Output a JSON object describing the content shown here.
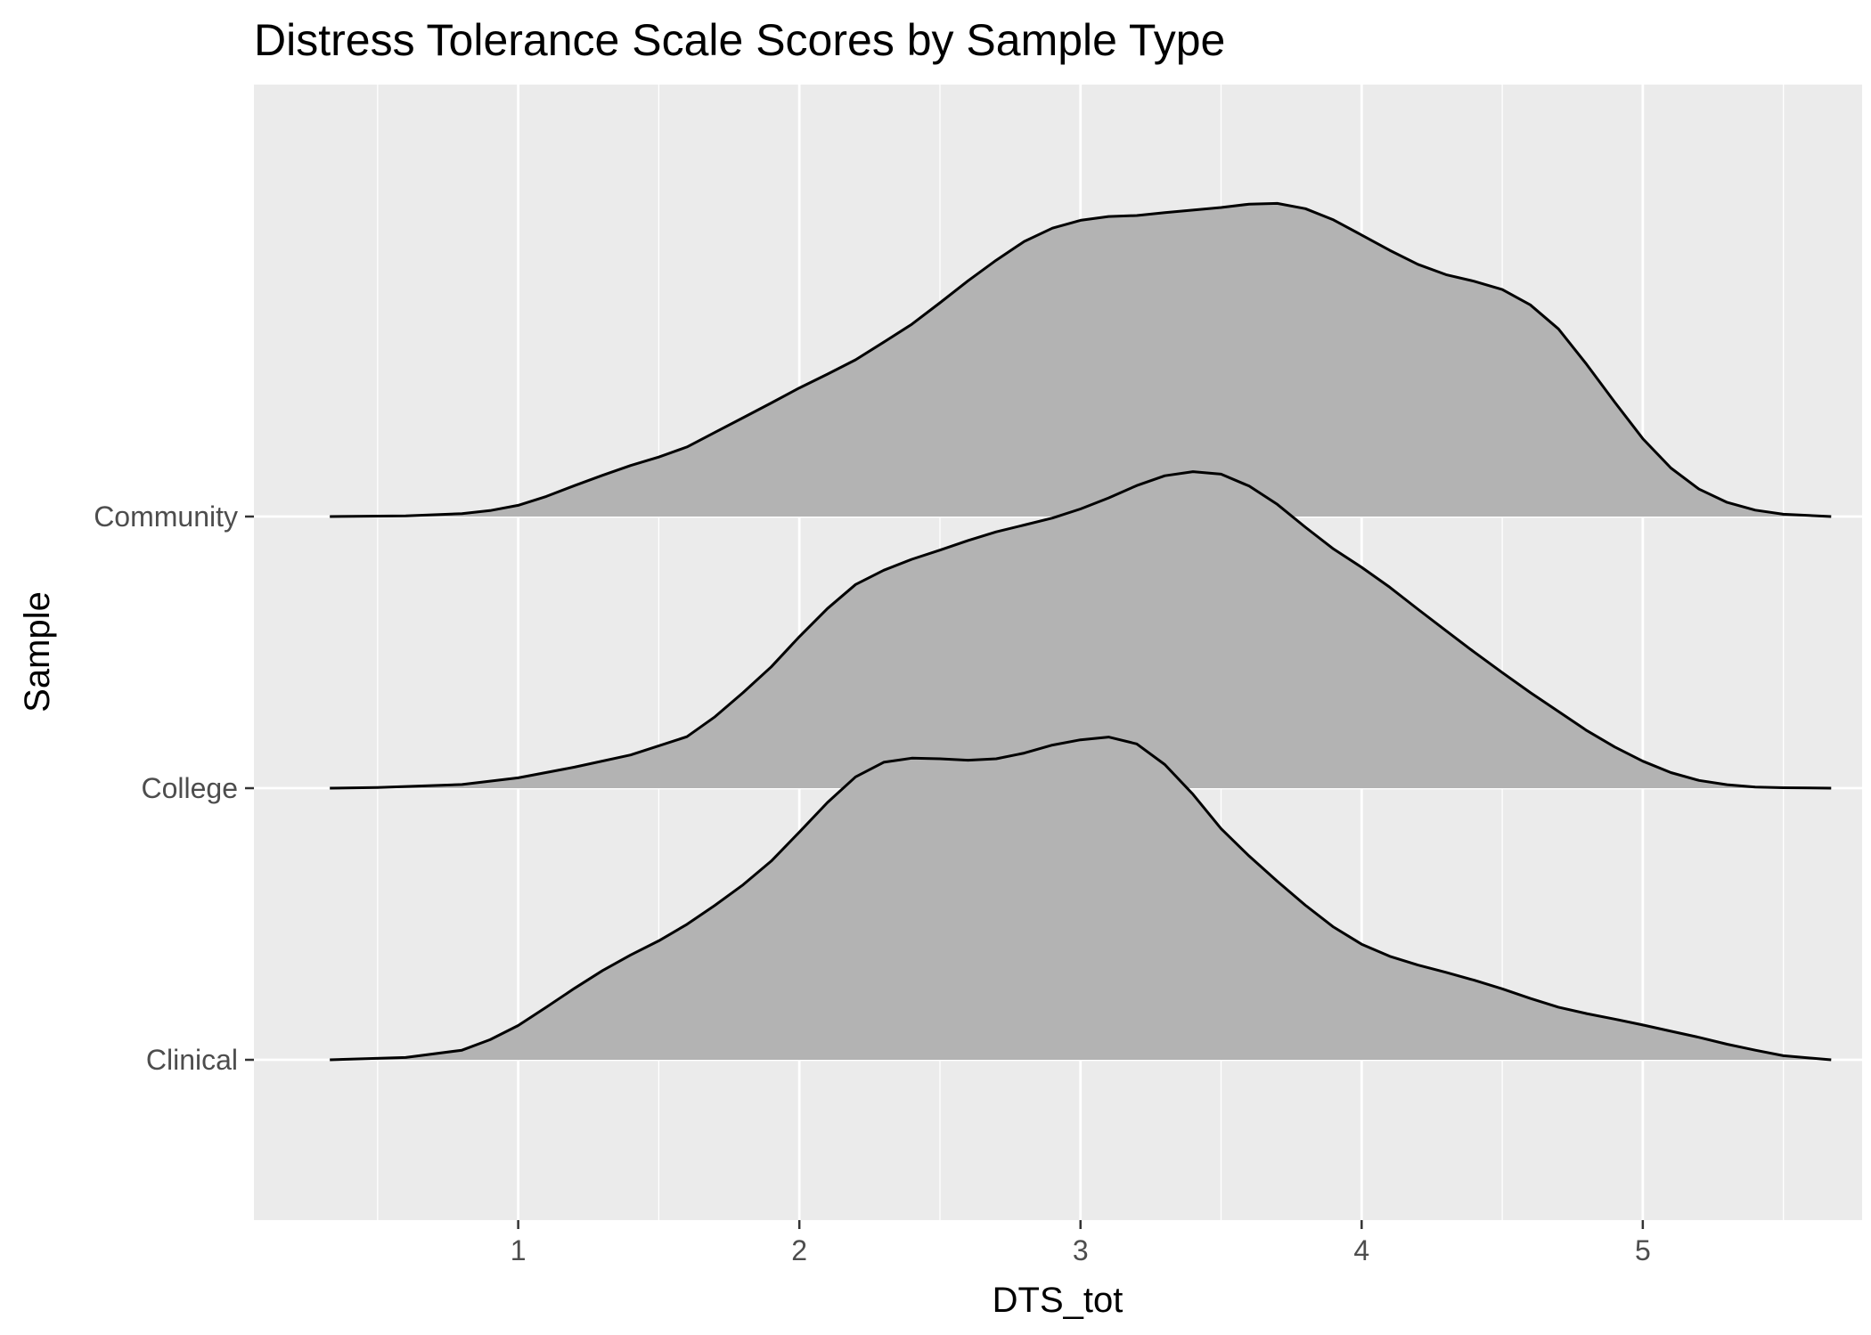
{
  "chart_data": {
    "type": "area",
    "subtype": "ridgeline-density",
    "title": "Distress Tolerance Scale Scores by Sample Type",
    "xlabel": "DTS_tot",
    "ylabel": "Sample",
    "xlim": [
      0.06,
      5.78
    ],
    "x_ticks": [
      1,
      2,
      3,
      4,
      5
    ],
    "x_tick_labels": [
      "1",
      "2",
      "3",
      "4",
      "5"
    ],
    "categories": [
      "Clinical",
      "College",
      "Community"
    ],
    "grid": true,
    "fill_color": "#b3b3b3",
    "outline_color": "#000000",
    "panel_color": "#ebebeb",
    "grid_color": "#ffffff",
    "series": [
      {
        "name": "Community",
        "x": [
          0.33,
          0.6,
          0.8,
          0.9,
          1.0,
          1.1,
          1.2,
          1.3,
          1.4,
          1.5,
          1.6,
          1.7,
          1.8,
          1.9,
          2.0,
          2.1,
          2.2,
          2.3,
          2.4,
          2.5,
          2.6,
          2.7,
          2.8,
          2.9,
          3.0,
          3.1,
          3.2,
          3.3,
          3.4,
          3.5,
          3.6,
          3.7,
          3.8,
          3.9,
          4.0,
          4.1,
          4.2,
          4.3,
          4.4,
          4.5,
          4.6,
          4.7,
          4.8,
          4.9,
          5.0,
          5.1,
          5.2,
          5.3,
          5.4,
          5.5,
          5.67
        ],
        "density": [
          0.0,
          0.003,
          0.013,
          0.026,
          0.049,
          0.088,
          0.135,
          0.18,
          0.223,
          0.26,
          0.304,
          0.368,
          0.432,
          0.496,
          0.562,
          0.622,
          0.685,
          0.762,
          0.84,
          0.934,
          1.03,
          1.12,
          1.202,
          1.26,
          1.294,
          1.311,
          1.315,
          1.328,
          1.339,
          1.35,
          1.365,
          1.368,
          1.345,
          1.296,
          1.23,
          1.163,
          1.102,
          1.057,
          1.028,
          0.992,
          0.925,
          0.82,
          0.665,
          0.5,
          0.34,
          0.212,
          0.12,
          0.062,
          0.028,
          0.01,
          0.0
        ]
      },
      {
        "name": "College",
        "x": [
          0.33,
          0.5,
          0.8,
          1.0,
          1.2,
          1.4,
          1.6,
          1.7,
          1.8,
          1.9,
          2.0,
          2.1,
          2.2,
          2.3,
          2.4,
          2.5,
          2.6,
          2.7,
          2.8,
          2.9,
          3.0,
          3.1,
          3.2,
          3.3,
          3.4,
          3.5,
          3.6,
          3.7,
          3.8,
          3.9,
          4.0,
          4.1,
          4.2,
          4.3,
          4.4,
          4.5,
          4.6,
          4.7,
          4.8,
          4.9,
          5.0,
          5.1,
          5.2,
          5.3,
          5.4,
          5.5,
          5.67
        ],
        "density": [
          0.0,
          0.003,
          0.016,
          0.045,
          0.092,
          0.145,
          0.225,
          0.312,
          0.418,
          0.53,
          0.662,
          0.785,
          0.89,
          0.952,
          1.0,
          1.04,
          1.082,
          1.12,
          1.15,
          1.18,
          1.22,
          1.268,
          1.322,
          1.365,
          1.383,
          1.372,
          1.32,
          1.24,
          1.14,
          1.045,
          0.965,
          0.878,
          0.782,
          0.688,
          0.595,
          0.505,
          0.418,
          0.335,
          0.252,
          0.18,
          0.118,
          0.068,
          0.034,
          0.015,
          0.005,
          0.002,
          0.0
        ]
      },
      {
        "name": "Clinical",
        "x": [
          0.33,
          0.6,
          0.8,
          0.9,
          1.0,
          1.1,
          1.2,
          1.3,
          1.4,
          1.5,
          1.6,
          1.7,
          1.8,
          1.9,
          2.0,
          2.1,
          2.2,
          2.3,
          2.4,
          2.5,
          2.6,
          2.7,
          2.8,
          2.9,
          3.0,
          3.1,
          3.2,
          3.3,
          3.4,
          3.5,
          3.6,
          3.7,
          3.8,
          3.9,
          4.0,
          4.1,
          4.2,
          4.3,
          4.4,
          4.5,
          4.6,
          4.7,
          4.8,
          4.9,
          5.0,
          5.1,
          5.2,
          5.3,
          5.4,
          5.5,
          5.67
        ],
        "density": [
          0.0,
          0.01,
          0.042,
          0.088,
          0.15,
          0.23,
          0.312,
          0.39,
          0.458,
          0.52,
          0.592,
          0.675,
          0.765,
          0.868,
          0.995,
          1.124,
          1.236,
          1.3,
          1.318,
          1.315,
          1.309,
          1.315,
          1.34,
          1.375,
          1.398,
          1.41,
          1.38,
          1.29,
          1.16,
          1.01,
          0.89,
          0.78,
          0.675,
          0.58,
          0.505,
          0.452,
          0.414,
          0.382,
          0.348,
          0.31,
          0.268,
          0.23,
          0.202,
          0.178,
          0.152,
          0.125,
          0.098,
          0.068,
          0.042,
          0.018,
          0.0
        ]
      }
    ]
  }
}
